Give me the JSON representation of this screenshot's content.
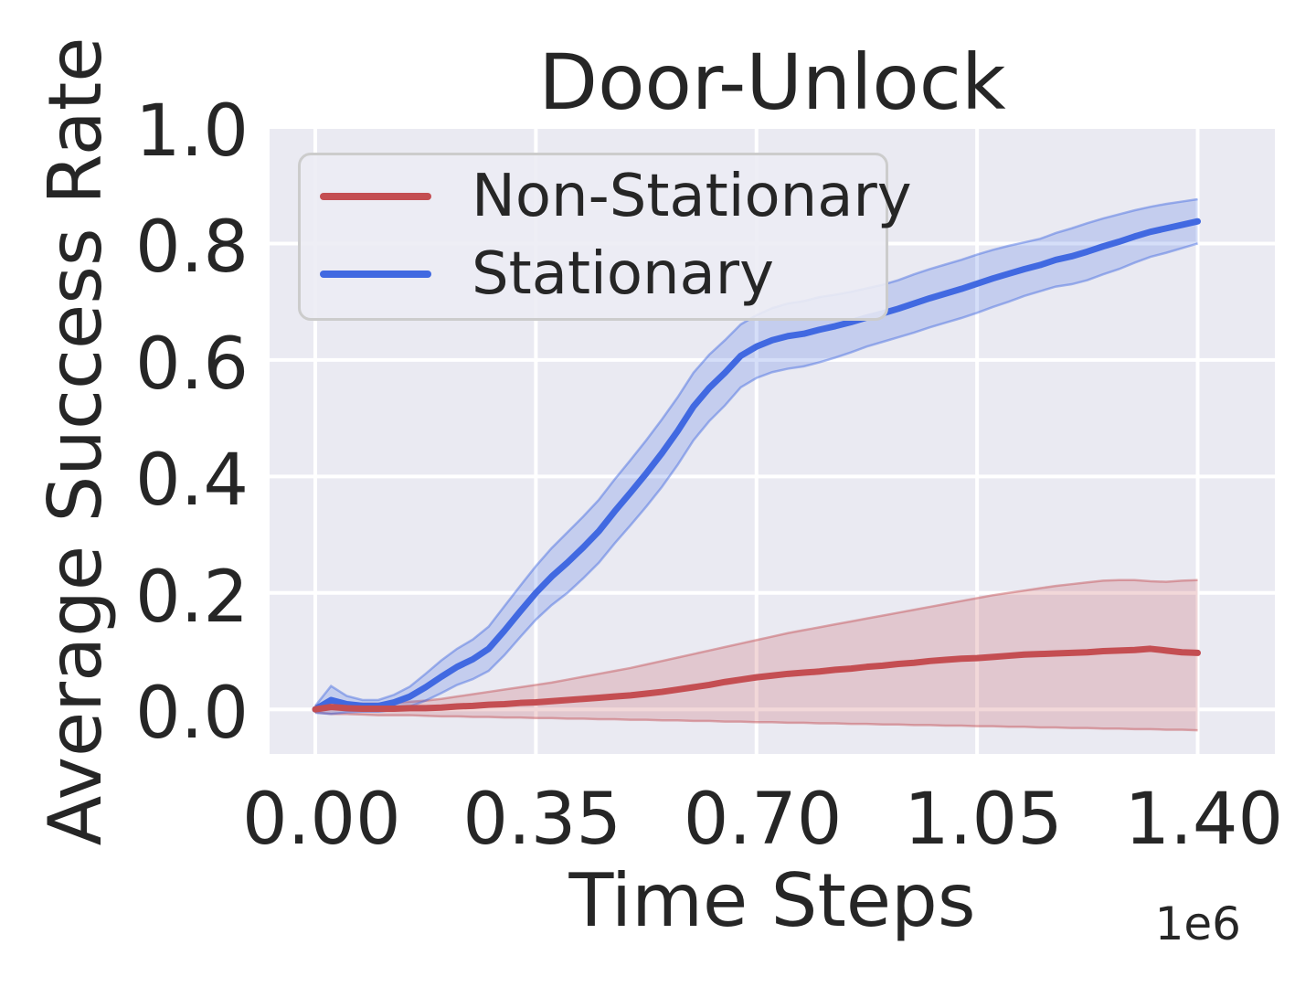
{
  "colors": {
    "plot_bg": "#EAEAF2",
    "grid": "#FFFFFF",
    "text": "#262626",
    "legend_border": "#CCCCCC",
    "non_stationary": "#C44E52",
    "stationary": "#4169E1"
  },
  "chart_data": {
    "type": "line",
    "title": "Door-Unlock",
    "xlabel": "Time Steps",
    "ylabel": "Average Success Rate",
    "x_unit_multiplier": "1e6",
    "grid": true,
    "legend_position": "upper left",
    "xlim": [
      -0.0725,
      1.5225
    ],
    "ylim": [
      -0.0766,
      1.0
    ],
    "x_ticks": {
      "values": [
        0,
        0.35,
        0.7,
        1.05,
        1.4
      ],
      "labels": [
        "0.00",
        "0.35",
        "0.70",
        "1.05",
        "1.40"
      ]
    },
    "y_ticks": {
      "values": [
        0,
        0.2,
        0.4,
        0.6,
        0.8,
        1.0
      ],
      "labels": [
        "0.0",
        "0.2",
        "0.4",
        "0.6",
        "0.8",
        "1.0"
      ]
    },
    "x": [
      0,
      0.025,
      0.05,
      0.075,
      0.1,
      0.125,
      0.15,
      0.175,
      0.2,
      0.225,
      0.25,
      0.275,
      0.3,
      0.325,
      0.35,
      0.375,
      0.4,
      0.425,
      0.45,
      0.475,
      0.5,
      0.525,
      0.55,
      0.575,
      0.6,
      0.625,
      0.65,
      0.675,
      0.7,
      0.725,
      0.75,
      0.775,
      0.8,
      0.825,
      0.85,
      0.875,
      0.9,
      0.925,
      0.95,
      0.975,
      1.0,
      1.025,
      1.05,
      1.075,
      1.1,
      1.125,
      1.15,
      1.175,
      1.2,
      1.225,
      1.25,
      1.275,
      1.3,
      1.325,
      1.35,
      1.375,
      1.4
    ],
    "series": [
      {
        "name": "Non-Stationary",
        "color": "#C44E52",
        "mean": [
          0.0,
          0.004,
          0.002,
          0.001,
          0.001,
          0.001,
          0.002,
          0.002,
          0.003,
          0.005,
          0.006,
          0.008,
          0.009,
          0.011,
          0.012,
          0.014,
          0.016,
          0.018,
          0.02,
          0.022,
          0.024,
          0.027,
          0.03,
          0.034,
          0.038,
          0.042,
          0.047,
          0.051,
          0.055,
          0.058,
          0.061,
          0.063,
          0.065,
          0.068,
          0.07,
          0.073,
          0.075,
          0.078,
          0.08,
          0.083,
          0.085,
          0.087,
          0.088,
          0.09,
          0.092,
          0.094,
          0.095,
          0.096,
          0.097,
          0.098,
          0.1,
          0.101,
          0.102,
          0.104,
          0.101,
          0.098,
          0.097
        ],
        "lower": [
          -0.005,
          -0.008,
          -0.008,
          -0.009,
          -0.01,
          -0.01,
          -0.01,
          -0.011,
          -0.012,
          -0.012,
          -0.013,
          -0.013,
          -0.014,
          -0.014,
          -0.015,
          -0.015,
          -0.016,
          -0.016,
          -0.017,
          -0.017,
          -0.018,
          -0.018,
          -0.019,
          -0.019,
          -0.02,
          -0.02,
          -0.021,
          -0.021,
          -0.022,
          -0.022,
          -0.023,
          -0.023,
          -0.024,
          -0.024,
          -0.025,
          -0.025,
          -0.026,
          -0.026,
          -0.027,
          -0.027,
          -0.028,
          -0.028,
          -0.029,
          -0.029,
          -0.03,
          -0.03,
          -0.031,
          -0.031,
          -0.032,
          -0.032,
          -0.033,
          -0.033,
          -0.034,
          -0.034,
          -0.035,
          -0.035,
          -0.036
        ],
        "upper": [
          0.006,
          0.015,
          0.011,
          0.01,
          0.01,
          0.011,
          0.013,
          0.015,
          0.018,
          0.022,
          0.026,
          0.03,
          0.034,
          0.038,
          0.042,
          0.046,
          0.051,
          0.056,
          0.061,
          0.066,
          0.071,
          0.077,
          0.083,
          0.089,
          0.095,
          0.101,
          0.107,
          0.113,
          0.119,
          0.125,
          0.131,
          0.136,
          0.141,
          0.146,
          0.151,
          0.156,
          0.161,
          0.166,
          0.171,
          0.176,
          0.181,
          0.186,
          0.191,
          0.196,
          0.2,
          0.204,
          0.208,
          0.212,
          0.215,
          0.218,
          0.221,
          0.222,
          0.222,
          0.22,
          0.219,
          0.221,
          0.222
        ]
      },
      {
        "name": "Stationary",
        "color": "#4169E1",
        "mean": [
          0.0,
          0.016,
          0.009,
          0.006,
          0.006,
          0.012,
          0.022,
          0.038,
          0.056,
          0.073,
          0.086,
          0.104,
          0.135,
          0.168,
          0.2,
          0.228,
          0.252,
          0.278,
          0.306,
          0.34,
          0.372,
          0.405,
          0.44,
          0.478,
          0.52,
          0.552,
          0.578,
          0.607,
          0.623,
          0.634,
          0.641,
          0.645,
          0.652,
          0.658,
          0.665,
          0.673,
          0.68,
          0.688,
          0.697,
          0.706,
          0.714,
          0.722,
          0.731,
          0.74,
          0.748,
          0.756,
          0.763,
          0.772,
          0.778,
          0.786,
          0.795,
          0.803,
          0.812,
          0.82,
          0.826,
          0.832,
          0.838
        ],
        "lower": [
          -0.006,
          -0.008,
          -0.005,
          -0.004,
          -0.004,
          -0.001,
          0.005,
          0.015,
          0.028,
          0.042,
          0.052,
          0.066,
          0.093,
          0.124,
          0.154,
          0.179,
          0.2,
          0.225,
          0.252,
          0.285,
          0.316,
          0.348,
          0.382,
          0.42,
          0.462,
          0.495,
          0.522,
          0.553,
          0.569,
          0.579,
          0.585,
          0.589,
          0.596,
          0.604,
          0.613,
          0.623,
          0.631,
          0.639,
          0.647,
          0.656,
          0.664,
          0.672,
          0.681,
          0.691,
          0.7,
          0.71,
          0.718,
          0.726,
          0.73,
          0.737,
          0.747,
          0.756,
          0.767,
          0.777,
          0.784,
          0.792,
          0.8
        ],
        "upper": [
          0.006,
          0.04,
          0.023,
          0.016,
          0.016,
          0.025,
          0.039,
          0.061,
          0.084,
          0.104,
          0.12,
          0.142,
          0.177,
          0.212,
          0.246,
          0.277,
          0.304,
          0.331,
          0.36,
          0.395,
          0.428,
          0.462,
          0.498,
          0.536,
          0.578,
          0.609,
          0.634,
          0.661,
          0.677,
          0.689,
          0.697,
          0.701,
          0.708,
          0.712,
          0.717,
          0.723,
          0.729,
          0.737,
          0.747,
          0.756,
          0.764,
          0.772,
          0.781,
          0.789,
          0.796,
          0.802,
          0.808,
          0.818,
          0.826,
          0.835,
          0.843,
          0.85,
          0.857,
          0.863,
          0.868,
          0.872,
          0.876
        ]
      }
    ]
  }
}
